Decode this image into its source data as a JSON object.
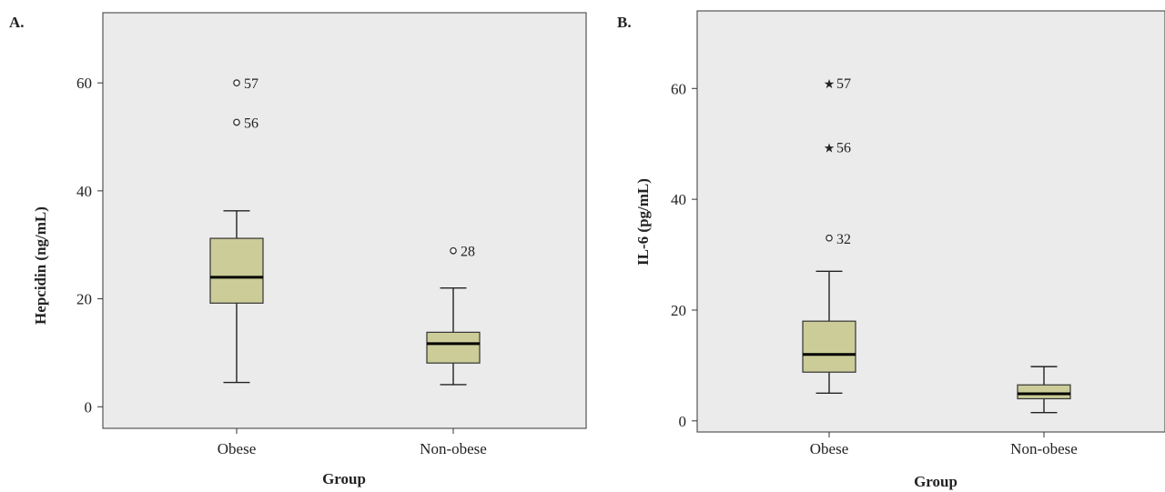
{
  "chart_data": [
    {
      "type": "box",
      "panel_label": "A.",
      "xlabel": "Group",
      "ylabel": "Hepcidin (ng/mL)",
      "ylim": [
        -4,
        73
      ],
      "yticks": [
        0,
        20,
        40,
        60
      ],
      "grid": false,
      "box_color": "#cccc99",
      "plot_bg": "#ebebeb",
      "categories": [
        "Obese",
        "Non-obese"
      ],
      "boxes": [
        {
          "category": "Obese",
          "whisker_low": 4.5,
          "q1": 19.2,
          "median": 24.0,
          "q3": 31.2,
          "whisker_high": 36.3,
          "outliers": [
            {
              "value": 60.0,
              "label": "57",
              "marker": "circle"
            },
            {
              "value": 52.7,
              "label": "56",
              "marker": "circle"
            }
          ]
        },
        {
          "category": "Non-obese",
          "whisker_low": 4.1,
          "q1": 8.1,
          "median": 11.7,
          "q3": 13.8,
          "whisker_high": 22.0,
          "outliers": [
            {
              "value": 28.9,
              "label": "28",
              "marker": "circle"
            }
          ]
        }
      ]
    },
    {
      "type": "box",
      "panel_label": "B.",
      "xlabel": "Group",
      "ylabel": "IL-6 (pg/mL)",
      "ylim": [
        -2,
        74
      ],
      "yticks": [
        0,
        20,
        40,
        60
      ],
      "grid": false,
      "box_color": "#cccc99",
      "plot_bg": "#ebebeb",
      "categories": [
        "Obese",
        "Non-obese"
      ],
      "boxes": [
        {
          "category": "Obese",
          "whisker_low": 5.0,
          "q1": 8.8,
          "median": 12.0,
          "q3": 18.0,
          "whisker_high": 27.0,
          "outliers": [
            {
              "value": 61.0,
              "label": "57",
              "marker": "star"
            },
            {
              "value": 49.5,
              "label": "56",
              "marker": "star"
            },
            {
              "value": 33.0,
              "label": "32",
              "marker": "circle"
            }
          ]
        },
        {
          "category": "Non-obese",
          "whisker_low": 1.5,
          "q1": 4.0,
          "median": 4.9,
          "q3": 6.5,
          "whisker_high": 9.8,
          "outliers": []
        }
      ]
    }
  ]
}
